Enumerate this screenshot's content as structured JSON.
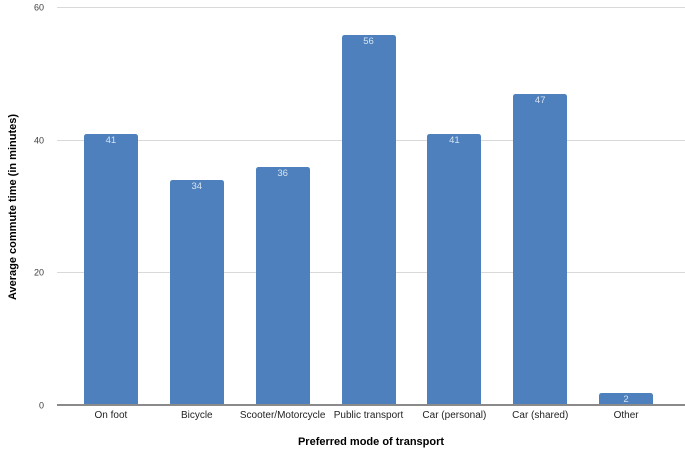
{
  "chart_data": {
    "type": "bar",
    "title": "",
    "categories": [
      "On foot",
      "Bicycle",
      "Scooter/Motorcycle",
      "Public transport",
      "Car (personal)",
      "Car (shared)",
      "Other"
    ],
    "values": [
      41,
      34,
      36,
      56,
      41,
      47,
      2
    ],
    "xlabel": "Preferred mode of transport",
    "ylabel": "Average commute time (in minutes)",
    "ylim": [
      0,
      60
    ],
    "yticks": [
      0,
      20,
      40,
      60
    ],
    "grid": "horizontal-only",
    "legend": "none",
    "value_labels": "inside-top",
    "colors": {
      "bar": "#4e80bd",
      "value_label": "#d6e4f2",
      "gridline": "#d9d9d9",
      "axis_line": "#8a8a8a"
    }
  }
}
